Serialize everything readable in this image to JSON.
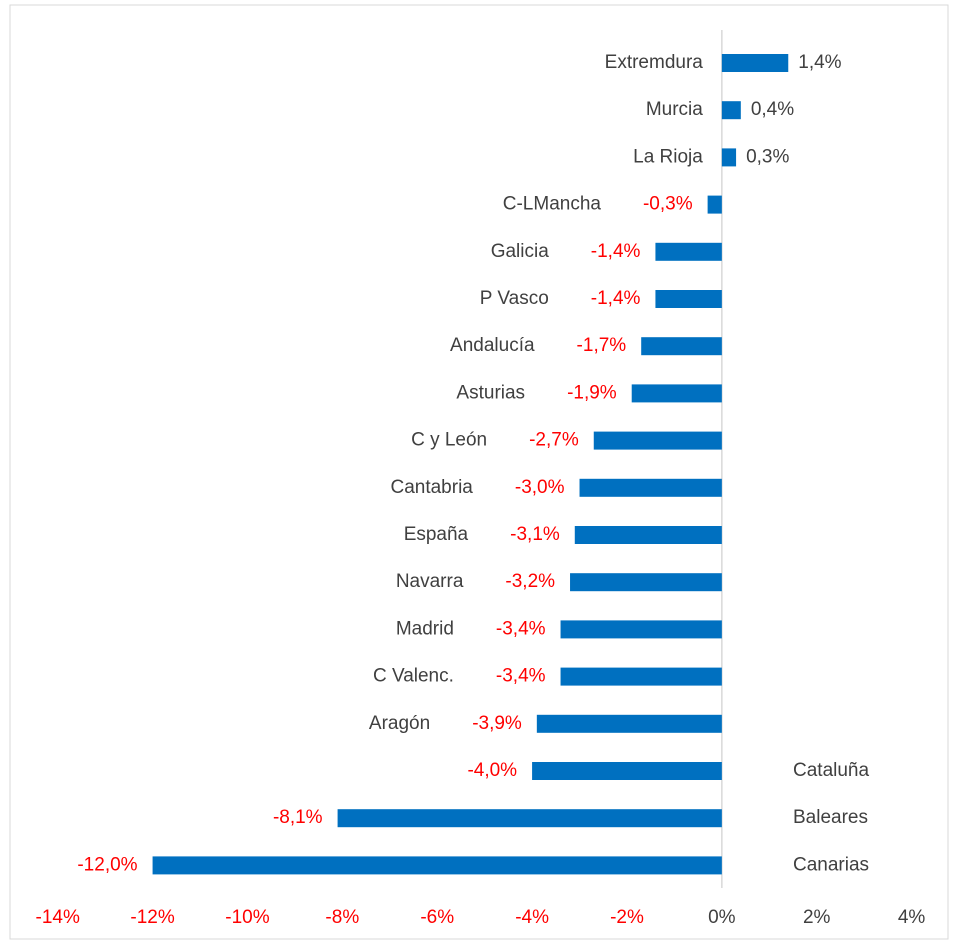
{
  "chart_data": {
    "type": "bar",
    "orientation": "horizontal",
    "categories": [
      "Extremdura",
      "Murcia",
      "La Rioja",
      "C-LMancha",
      "Galicia",
      "P Vasco",
      "Andalucía",
      "Asturias",
      "C y León",
      "Cantabria",
      "España",
      "Navarra",
      "Madrid",
      "C Valenc.",
      "Aragón",
      "Cataluña",
      "Baleares",
      "Canarias"
    ],
    "values": [
      1.4,
      0.4,
      0.3,
      -0.3,
      -1.4,
      -1.4,
      -1.7,
      -1.9,
      -2.7,
      -3.0,
      -3.1,
      -3.2,
      -3.4,
      -3.4,
      -3.9,
      -4.0,
      -8.1,
      -12.0
    ],
    "value_labels": [
      "1,4%",
      "0,4%",
      "0,3%",
      "-0,3%",
      "-1,4%",
      "-1,4%",
      "-1,7%",
      "-1,9%",
      "-2,7%",
      "-3,0%",
      "-3,1%",
      "-3,2%",
      "-3,4%",
      "-3,4%",
      "-3,9%",
      "-4,0%",
      "-8,1%",
      "-12,0%"
    ],
    "color": "#0070c0",
    "label_color": "#404040",
    "negative_label_color": "#ff0000",
    "xlim": [
      -14,
      4
    ],
    "xticks": [
      {
        "value": -14,
        "label": "-14%"
      },
      {
        "value": -12,
        "label": "-12%"
      },
      {
        "value": -10,
        "label": "-10%"
      },
      {
        "value": -8,
        "label": "-8%"
      },
      {
        "value": -6,
        "label": "-6%"
      },
      {
        "value": -4,
        "label": "-4%"
      },
      {
        "value": -2,
        "label": "-2%"
      },
      {
        "value": 0,
        "label": "0%"
      },
      {
        "value": 2,
        "label": "2%"
      },
      {
        "value": 4,
        "label": "4%"
      }
    ]
  }
}
